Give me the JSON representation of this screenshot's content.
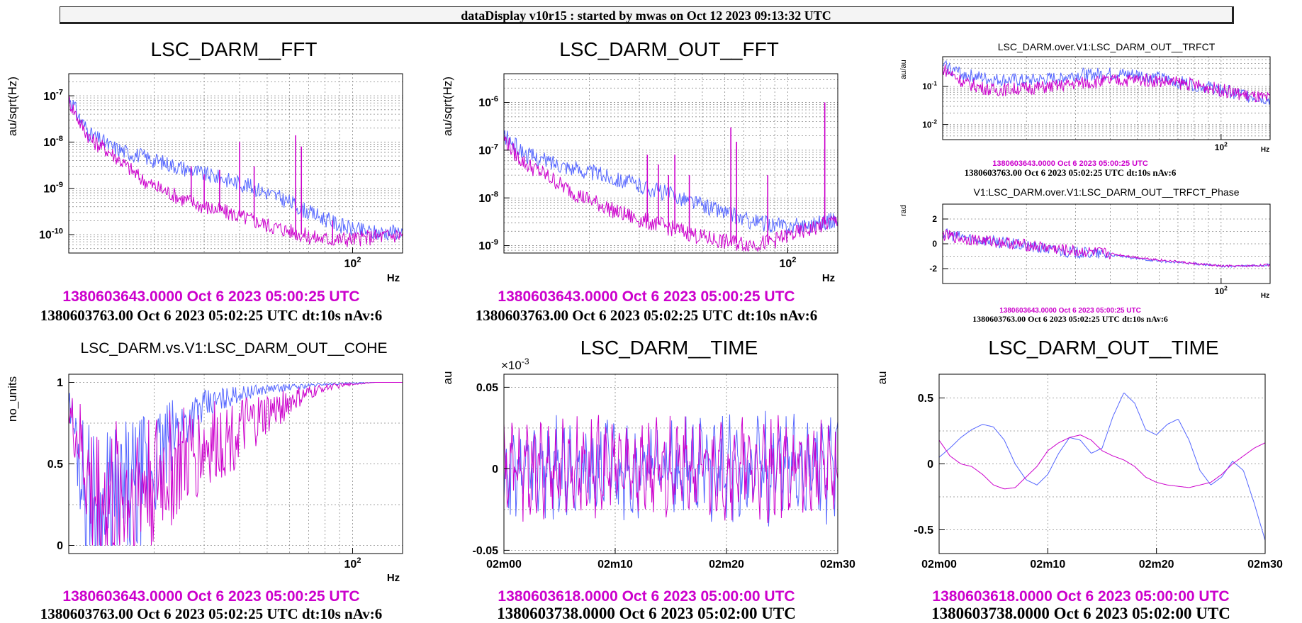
{
  "header": {
    "title": "dataDisplay v10r15 : started by mwas on Oct 12 2023 09:13:32 UTC"
  },
  "colors": {
    "series_a": "#cc00cc",
    "series_b": "#5566ff"
  },
  "panels": [
    {
      "id": "darm_fft",
      "title": "LSC_DARM__FFT",
      "ylabel": "au/sqrt(Hz)",
      "xunit": "Hz",
      "caption_magenta": "1380603643.0000 Oct 6 2023 05:00:25 UTC",
      "caption_black": "1380603763.00 Oct 6 2023 05:02:25 UTC dt:10s nAv:6"
    },
    {
      "id": "darm_out_fft",
      "title": "LSC_DARM_OUT__FFT",
      "ylabel": "au/sqrt(Hz)",
      "xunit": "Hz",
      "caption_magenta": "1380603643.0000 Oct 6 2023 05:00:25 UTC",
      "caption_black": "1380603763.00 Oct 6 2023 05:02:25 UTC dt:10s nAv:6"
    },
    {
      "id": "trfct",
      "title": "LSC_DARM.over.V1:LSC_DARM_OUT__TRFCT",
      "ylabel": "au/au",
      "xunit": "Hz",
      "caption_magenta": "1380603643.0000 Oct 6 2023 05:00:25 UTC",
      "caption_black": "1380603763.00 Oct 6 2023 05:02:25 UTC dt:10s nAv:6"
    },
    {
      "id": "trfct_phase",
      "title": "V1:LSC_DARM.over.V1:LSC_DARM_OUT__TRFCT_Phase",
      "ylabel": "rad",
      "xunit": "Hz",
      "caption_magenta": "1380603643.0000 Oct 6 2023 05:00:25 UTC",
      "caption_black": "1380603763.00 Oct 6 2023 05:02:25 UTC dt:10s nAv:6"
    },
    {
      "id": "cohe",
      "title": "LSC_DARM.vs.V1:LSC_DARM_OUT__COHE",
      "ylabel": "no_units",
      "xunit": "Hz",
      "caption_magenta": "1380603643.0000 Oct 6 2023 05:00:25 UTC",
      "caption_black": "1380603763.00 Oct 6 2023 05:02:25 UTC dt:10s nAv:6"
    },
    {
      "id": "darm_time",
      "title": "LSC_DARM__TIME",
      "ylabel": "au",
      "exponent": "×10",
      "caption_magenta": "1380603618.0000 Oct 6 2023 05:00:00 UTC",
      "caption_black": "1380603738.0000 Oct 6 2023 05:02:00 UTC"
    },
    {
      "id": "darm_out_time",
      "title": "LSC_DARM_OUT__TIME",
      "ylabel": "au",
      "caption_magenta": "1380603618.0000 Oct 6 2023 05:00:00 UTC",
      "caption_black": "1380603738.0000 Oct 6 2023 05:02:00 UTC"
    }
  ],
  "chart_data": [
    {
      "type": "line",
      "title": "LSC_DARM__FFT",
      "ylabel": "au/sqrt(Hz)",
      "xlabel": "Hz",
      "xscale": "log",
      "yscale": "log",
      "xlim": [
        10,
        150
      ],
      "ylim": [
        4e-11,
        3e-07
      ],
      "grid": true,
      "xticks": [
        {
          "v": 100,
          "label": "10",
          "sup": "2"
        }
      ],
      "yticks": [
        {
          "v": 1e-07,
          "label": "10",
          "sup": "-7"
        },
        {
          "v": 1e-08,
          "label": "10",
          "sup": "-8"
        },
        {
          "v": 1e-09,
          "label": "10",
          "sup": "-9"
        },
        {
          "v": 1e-10,
          "label": "10",
          "sup": "-10"
        }
      ],
      "series": [
        {
          "color": "#5566ff",
          "x": [
            10,
            11,
            12,
            14,
            16,
            18,
            20,
            25,
            30,
            40,
            50,
            60,
            70,
            80,
            90,
            100,
            120,
            150
          ],
          "y": [
            1e-07,
            3e-08,
            1.4e-08,
            8e-09,
            6e-09,
            5e-09,
            4e-09,
            2.8e-09,
            2e-09,
            1.3e-09,
            8e-10,
            5e-10,
            3e-10,
            2.2e-10,
            1.6e-10,
            1.3e-10,
            1.1e-10,
            1.2e-10
          ]
        },
        {
          "color": "#cc00cc",
          "x": [
            10,
            11,
            12,
            14,
            16,
            18,
            20,
            25,
            30,
            40,
            50,
            60,
            70,
            80,
            90,
            100,
            120,
            150
          ],
          "y": [
            8e-08,
            2.5e-08,
            1.1e-08,
            6e-09,
            3e-09,
            1.6e-09,
            1.1e-09,
            6e-10,
            4e-10,
            2.5e-10,
            1.6e-10,
            1.2e-10,
            9e-11,
            8e-11,
            8e-11,
            8e-11,
            9e-11,
            1e-10
          ],
          "lines": [
            [
              27,
              3e-09
            ],
            [
              30,
              2e-09
            ],
            [
              34,
              2.5e-09
            ],
            [
              40,
              1e-08
            ],
            [
              45,
              3e-09
            ],
            [
              63,
              1.4e-08
            ],
            [
              66,
              8e-09
            ],
            [
              85,
              2e-10
            ]
          ]
        }
      ]
    },
    {
      "type": "line",
      "title": "LSC_DARM_OUT__FFT",
      "ylabel": "au/sqrt(Hz)",
      "xlabel": "Hz",
      "xscale": "log",
      "yscale": "log",
      "xlim": [
        10,
        150
      ],
      "ylim": [
        7e-10,
        4e-06
      ],
      "grid": true,
      "xticks": [
        {
          "v": 100,
          "label": "10",
          "sup": "2"
        }
      ],
      "yticks": [
        {
          "v": 1e-06,
          "label": "10",
          "sup": "-6"
        },
        {
          "v": 1e-07,
          "label": "10",
          "sup": "-7"
        },
        {
          "v": 1e-08,
          "label": "10",
          "sup": "-8"
        },
        {
          "v": 1e-09,
          "label": "10",
          "sup": "-9"
        }
      ],
      "series": [
        {
          "color": "#5566ff",
          "x": [
            10,
            11,
            12,
            14,
            16,
            18,
            20,
            25,
            30,
            40,
            50,
            60,
            70,
            80,
            90,
            100,
            120,
            150
          ],
          "y": [
            2e-07,
            1.2e-07,
            8e-08,
            6e-08,
            5e-08,
            4e-08,
            3.5e-08,
            2.5e-08,
            1.8e-08,
            1.1e-08,
            7e-09,
            5e-09,
            3.5e-09,
            3e-09,
            2.7e-09,
            2.5e-09,
            2.8e-09,
            3.5e-09
          ]
        },
        {
          "color": "#cc00cc",
          "x": [
            10,
            11,
            12,
            14,
            16,
            18,
            20,
            25,
            30,
            40,
            50,
            60,
            70,
            80,
            90,
            100,
            120,
            150
          ],
          "y": [
            1.8e-07,
            8e-08,
            5e-08,
            3e-08,
            1.8e-08,
            1.2e-08,
            9e-09,
            5e-09,
            3.5e-09,
            2.2e-09,
            1.5e-09,
            1.2e-09,
            1.1e-09,
            1.1e-09,
            1.3e-09,
            1.6e-09,
            2.2e-09,
            3.5e-09
          ],
          "lines": [
            [
              32,
              8e-08
            ],
            [
              35,
              5e-08
            ],
            [
              38,
              3e-08
            ],
            [
              40,
              8e-08
            ],
            [
              45,
              3e-08
            ],
            [
              63,
              3e-07
            ],
            [
              66,
              1.5e-07
            ],
            [
              85,
              3e-08
            ],
            [
              135,
              1e-06
            ]
          ]
        }
      ]
    },
    {
      "type": "line",
      "title": "LSC_DARM.over.V1:LSC_DARM_OUT__TRFCT",
      "ylabel": "au/au",
      "xlabel": "Hz",
      "xscale": "log",
      "yscale": "log",
      "xlim": [
        10,
        150
      ],
      "ylim": [
        0.004,
        0.6
      ],
      "grid": true,
      "xticks": [
        {
          "v": 100,
          "label": "10",
          "sup": "2"
        }
      ],
      "yticks": [
        {
          "v": 0.1,
          "label": "10",
          "sup": "-1"
        },
        {
          "v": 0.01,
          "label": "10",
          "sup": "-2"
        }
      ],
      "series": [
        {
          "color": "#5566ff",
          "x": [
            10,
            12,
            15,
            20,
            25,
            30,
            40,
            50,
            60,
            80,
            100,
            120,
            150
          ],
          "y": [
            0.35,
            0.2,
            0.15,
            0.14,
            0.16,
            0.2,
            0.21,
            0.2,
            0.16,
            0.11,
            0.08,
            0.06,
            0.045
          ]
        },
        {
          "color": "#cc00cc",
          "x": [
            10,
            12,
            15,
            20,
            25,
            30,
            40,
            50,
            60,
            80,
            100,
            120,
            150
          ],
          "y": [
            0.3,
            0.12,
            0.08,
            0.09,
            0.1,
            0.12,
            0.14,
            0.15,
            0.14,
            0.11,
            0.08,
            0.06,
            0.045
          ]
        }
      ]
    },
    {
      "type": "line",
      "title": "V1:LSC_DARM.over.V1:LSC_DARM_OUT__TRFCT_Phase",
      "ylabel": "rad",
      "xlabel": "Hz",
      "xscale": "log",
      "yscale": "linear",
      "xlim": [
        10,
        150
      ],
      "ylim": [
        -3.2,
        3.2
      ],
      "grid": true,
      "xticks": [
        {
          "v": 100,
          "label": "10",
          "sup": "2"
        }
      ],
      "yticks": [
        {
          "v": 2,
          "label": "2"
        },
        {
          "v": 0,
          "label": "0"
        },
        {
          "v": -2,
          "label": "-2"
        }
      ],
      "series": [
        {
          "color": "#5566ff",
          "x": [
            10,
            12,
            15,
            20,
            25,
            30,
            40,
            50,
            60,
            80,
            100,
            120,
            150
          ],
          "y": [
            0.8,
            0.5,
            0.2,
            -0.2,
            -0.5,
            -0.7,
            -0.9,
            -1.2,
            -1.4,
            -1.6,
            -1.8,
            -1.8,
            -1.7
          ]
        },
        {
          "color": "#cc00cc",
          "x": [
            10,
            12,
            15,
            20,
            25,
            30,
            40,
            50,
            60,
            80,
            100,
            120,
            150
          ],
          "y": [
            0.7,
            0.4,
            0.2,
            -0.1,
            -0.4,
            -0.6,
            -0.8,
            -1.1,
            -1.3,
            -1.6,
            -1.8,
            -1.8,
            -1.7
          ]
        }
      ]
    },
    {
      "type": "line",
      "title": "LSC_DARM.vs.V1:LSC_DARM_OUT__COHE",
      "ylabel": "no_units",
      "xlabel": "Hz",
      "xscale": "log",
      "yscale": "linear",
      "xlim": [
        10,
        150
      ],
      "ylim": [
        -0.05,
        1.05
      ],
      "grid": true,
      "xticks": [
        {
          "v": 100,
          "label": "10",
          "sup": "2"
        }
      ],
      "yticks": [
        {
          "v": 1,
          "label": "1"
        },
        {
          "v": 0.5,
          "label": "0.5"
        },
        {
          "v": 0,
          "label": "0"
        }
      ],
      "series": [
        {
          "color": "#5566ff",
          "x": [
            10,
            11,
            12,
            13,
            15,
            17,
            20,
            25,
            30,
            35,
            40,
            50,
            60,
            70,
            80,
            100,
            120,
            150
          ],
          "y": [
            0.9,
            0.5,
            0.2,
            0.1,
            0.2,
            0.3,
            0.5,
            0.75,
            0.85,
            0.9,
            0.93,
            0.96,
            0.97,
            0.98,
            0.99,
            0.995,
            1,
            1
          ]
        },
        {
          "color": "#cc00cc",
          "x": [
            10,
            11,
            12,
            13,
            15,
            17,
            20,
            25,
            30,
            35,
            40,
            50,
            60,
            70,
            80,
            100,
            120,
            150
          ],
          "y": [
            0.8,
            0.6,
            0.3,
            0.25,
            0.3,
            0.35,
            0.4,
            0.5,
            0.6,
            0.65,
            0.7,
            0.8,
            0.88,
            0.93,
            0.97,
            0.99,
            1,
            1
          ]
        }
      ]
    },
    {
      "type": "line",
      "title": "LSC_DARM__TIME",
      "ylabel": "au",
      "yexponent": "-3",
      "xlim": [
        0,
        30
      ],
      "ylim": [
        -0.052,
        0.058
      ],
      "grid": true,
      "xticks": [
        {
          "v": 0,
          "label": "02m00"
        },
        {
          "v": 10,
          "label": "02m10"
        },
        {
          "v": 20,
          "label": "02m20"
        },
        {
          "v": 30,
          "label": "02m30"
        }
      ],
      "yticks": [
        {
          "v": 0.05,
          "label": "0.05"
        },
        {
          "v": 0,
          "label": "0"
        },
        {
          "v": -0.05,
          "label": "-0.05"
        }
      ],
      "series": [
        {
          "color": "#5566ff",
          "amplitude": 0.03,
          "seed": 7
        },
        {
          "color": "#cc00cc",
          "amplitude": 0.028,
          "seed": 3
        }
      ]
    },
    {
      "type": "line",
      "title": "LSC_DARM_OUT__TIME",
      "ylabel": "au",
      "xlim": [
        0,
        30
      ],
      "ylim": [
        -0.68,
        0.68
      ],
      "grid": true,
      "xticks": [
        {
          "v": 0,
          "label": "02m00"
        },
        {
          "v": 10,
          "label": "02m10"
        },
        {
          "v": 20,
          "label": "02m20"
        },
        {
          "v": 30,
          "label": "02m30"
        }
      ],
      "yticks": [
        {
          "v": 0.5,
          "label": "0.5"
        },
        {
          "v": 0,
          "label": "0"
        },
        {
          "v": -0.5,
          "label": "-0.5"
        }
      ],
      "series": [
        {
          "color": "#5566ff",
          "x": [
            0,
            1,
            2,
            3,
            4,
            5,
            6,
            7,
            8,
            9,
            10,
            11,
            12,
            13,
            14,
            15,
            16,
            17,
            18,
            19,
            20,
            21,
            22,
            23,
            24,
            25,
            26,
            27,
            28,
            29,
            30
          ],
          "y": [
            0.05,
            0.12,
            0.2,
            0.26,
            0.3,
            0.28,
            0.18,
            0.0,
            -0.12,
            -0.16,
            -0.08,
            0.08,
            0.2,
            0.18,
            0.08,
            0.12,
            0.36,
            0.54,
            0.46,
            0.26,
            0.22,
            0.3,
            0.34,
            0.18,
            -0.05,
            -0.16,
            -0.1,
            0.02,
            -0.05,
            -0.3,
            -0.58
          ]
        },
        {
          "color": "#cc00cc",
          "x": [
            0,
            1,
            2,
            3,
            4,
            5,
            6,
            7,
            8,
            9,
            10,
            11,
            12,
            13,
            14,
            15,
            16,
            17,
            18,
            19,
            20,
            21,
            22,
            23,
            24,
            25,
            26,
            27,
            28,
            29,
            30
          ],
          "y": [
            0.18,
            0.06,
            0.0,
            -0.02,
            -0.08,
            -0.16,
            -0.19,
            -0.18,
            -0.1,
            -0.02,
            0.1,
            0.16,
            0.2,
            0.22,
            0.18,
            0.1,
            0.06,
            0.03,
            -0.02,
            -0.1,
            -0.14,
            -0.16,
            -0.17,
            -0.18,
            -0.16,
            -0.14,
            -0.08,
            0.0,
            0.06,
            0.12,
            0.16
          ]
        }
      ]
    }
  ]
}
